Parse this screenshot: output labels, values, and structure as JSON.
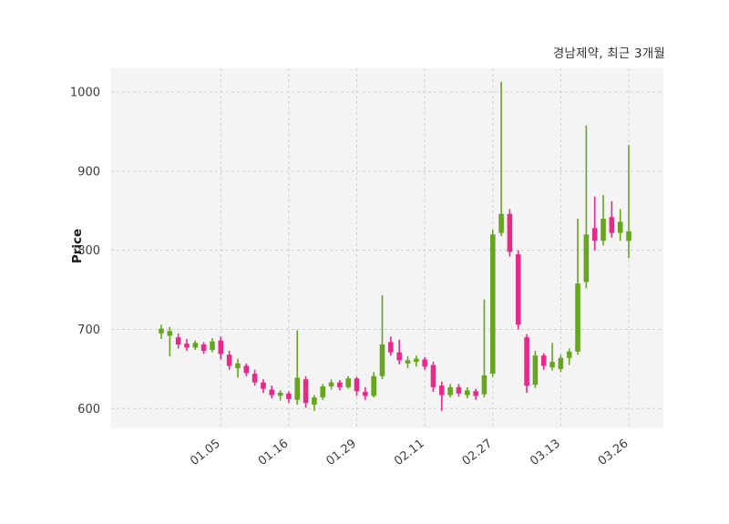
{
  "chart_data": {
    "type": "candlestick",
    "title": "경남제약, 최근 3개월",
    "ylabel": "Price",
    "ylim": [
      575,
      1030
    ],
    "y_ticks": [
      600,
      700,
      800,
      900,
      1000
    ],
    "x_ticks": [
      {
        "index": 7,
        "label": "01.05"
      },
      {
        "index": 15,
        "label": "01.16"
      },
      {
        "index": 23,
        "label": "01.29"
      },
      {
        "index": 31,
        "label": "02.11"
      },
      {
        "index": 39,
        "label": "02.27"
      },
      {
        "index": 47,
        "label": "03.13"
      },
      {
        "index": 55,
        "label": "03.26"
      }
    ],
    "grid": "dashed",
    "legend_position": "none",
    "up_color": "#66a61e",
    "down_color": "#e7298a",
    "plot_bg": "#f4f4f5",
    "grid_color": "#cfcfcf",
    "tick_label_color": "#3d3d3d",
    "candle_format": [
      "open",
      "high",
      "low",
      "close"
    ],
    "candles": [
      [
        695,
        706,
        688,
        701
      ],
      [
        692,
        703,
        666,
        698
      ],
      [
        690,
        695,
        676,
        681
      ],
      [
        682,
        688,
        673,
        677
      ],
      [
        677,
        686,
        674,
        683
      ],
      [
        681,
        684,
        669,
        673
      ],
      [
        674,
        689,
        671,
        685
      ],
      [
        686,
        691,
        662,
        669
      ],
      [
        668,
        673,
        649,
        654
      ],
      [
        651,
        663,
        639,
        657
      ],
      [
        654,
        657,
        641,
        645
      ],
      [
        644,
        649,
        629,
        633
      ],
      [
        633,
        637,
        620,
        625
      ],
      [
        624,
        629,
        613,
        617
      ],
      [
        616,
        623,
        610,
        620
      ],
      [
        619,
        622,
        607,
        612
      ],
      [
        611,
        699,
        605,
        639
      ],
      [
        637,
        641,
        601,
        607
      ],
      [
        605,
        617,
        597,
        614
      ],
      [
        614,
        631,
        611,
        628
      ],
      [
        628,
        637,
        624,
        633
      ],
      [
        633,
        636,
        623,
        627
      ],
      [
        627,
        641,
        625,
        638
      ],
      [
        638,
        640,
        616,
        622
      ],
      [
        621,
        627,
        611,
        616
      ],
      [
        616,
        646,
        614,
        641
      ],
      [
        641,
        743,
        637,
        681
      ],
      [
        684,
        691,
        667,
        671
      ],
      [
        671,
        687,
        656,
        661
      ],
      [
        657,
        666,
        651,
        661
      ],
      [
        659,
        667,
        653,
        663
      ],
      [
        662,
        665,
        649,
        653
      ],
      [
        655,
        659,
        621,
        627
      ],
      [
        629,
        634,
        597,
        617
      ],
      [
        617,
        631,
        614,
        627
      ],
      [
        627,
        631,
        615,
        619
      ],
      [
        617,
        627,
        613,
        623
      ],
      [
        622,
        625,
        611,
        616
      ],
      [
        618,
        738,
        614,
        642
      ],
      [
        644,
        826,
        640,
        820
      ],
      [
        822,
        1013,
        818,
        846
      ],
      [
        846,
        852,
        792,
        798
      ],
      [
        795,
        800,
        700,
        706
      ],
      [
        690,
        694,
        620,
        629
      ],
      [
        630,
        673,
        626,
        667
      ],
      [
        667,
        670,
        649,
        654
      ],
      [
        652,
        683,
        648,
        659
      ],
      [
        650,
        668,
        646,
        664
      ],
      [
        664,
        676,
        655,
        672
      ],
      [
        672,
        840,
        668,
        758
      ],
      [
        760,
        958,
        752,
        820
      ],
      [
        828,
        868,
        800,
        812
      ],
      [
        812,
        870,
        806,
        840
      ],
      [
        842,
        862,
        816,
        822
      ],
      [
        822,
        852,
        812,
        836
      ],
      [
        812,
        933,
        790,
        824
      ]
    ]
  }
}
